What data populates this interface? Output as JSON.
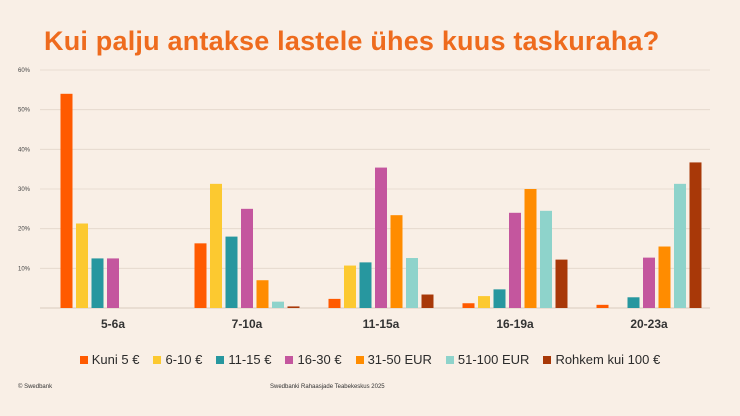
{
  "chart_data": {
    "type": "bar",
    "title": "Kui palju antakse lastele ühes kuus taskuraha?",
    "xlabel": "",
    "ylabel": "",
    "ylim": [
      0,
      60
    ],
    "yticks": [
      "60%",
      "50%",
      "40%",
      "30%",
      "20%",
      "10%"
    ],
    "ytick_values": [
      60,
      50,
      40,
      30,
      20,
      10
    ],
    "grid": true,
    "legend_position": "bottom",
    "categories": [
      "5-6a",
      "7-10a",
      "11-15a",
      "16-19a",
      "20-23a"
    ],
    "series": [
      {
        "name": "Kuni 5 €",
        "color": "#ff5a00",
        "values": [
          54,
          16.3,
          2.3,
          1.2,
          0.8
        ]
      },
      {
        "name": "6-10 €",
        "color": "#fcc930",
        "values": [
          21.3,
          31.3,
          10.7,
          3,
          0
        ]
      },
      {
        "name": "11-15 €",
        "color": "#27979f",
        "values": [
          12.5,
          18,
          11.5,
          4.7,
          2.7
        ]
      },
      {
        "name": "16-30 €",
        "color": "#c4569e",
        "values": [
          12.5,
          25,
          35.4,
          24,
          12.7
        ]
      },
      {
        "name": "31-50 EUR",
        "color": "#ff8c00",
        "values": [
          0,
          7,
          23.4,
          30,
          15.5
        ]
      },
      {
        "name": "51-100 EUR",
        "color": "#8ed3cb",
        "values": [
          0,
          1.6,
          12.6,
          24.5,
          31.3
        ]
      },
      {
        "name": "Rohkem kui 100 €",
        "color": "#a83808",
        "values": [
          0,
          0.4,
          3.4,
          12.2,
          36.7
        ]
      }
    ]
  },
  "footer": {
    "left": "© Swedbank",
    "center": "Swedbanki Rahaasjade Teabekeskus 2025"
  }
}
